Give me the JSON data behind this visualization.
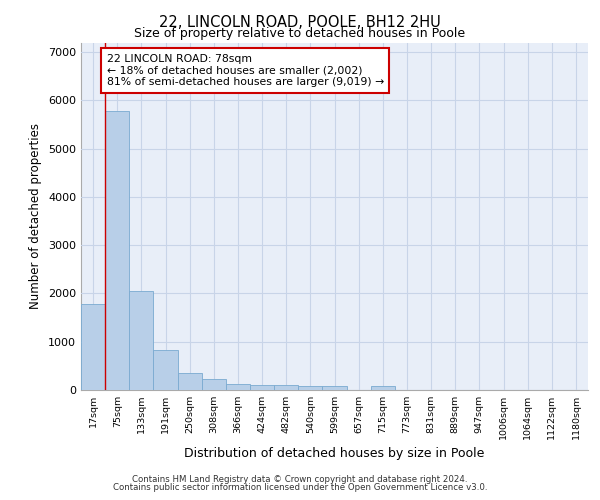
{
  "title_line1": "22, LINCOLN ROAD, POOLE, BH12 2HU",
  "title_line2": "Size of property relative to detached houses in Poole",
  "xlabel": "Distribution of detached houses by size in Poole",
  "ylabel": "Number of detached properties",
  "bar_labels": [
    "17sqm",
    "75sqm",
    "133sqm",
    "191sqm",
    "250sqm",
    "308sqm",
    "366sqm",
    "424sqm",
    "482sqm",
    "540sqm",
    "599sqm",
    "657sqm",
    "715sqm",
    "773sqm",
    "831sqm",
    "889sqm",
    "947sqm",
    "1006sqm",
    "1064sqm",
    "1122sqm",
    "1180sqm"
  ],
  "bar_values": [
    1780,
    5780,
    2060,
    830,
    360,
    230,
    120,
    110,
    100,
    85,
    80,
    0,
    80,
    0,
    0,
    0,
    0,
    0,
    0,
    0,
    0
  ],
  "bar_color": "#b8cfe8",
  "bar_edge_color": "#7aaad0",
  "annotation_text": "22 LINCOLN ROAD: 78sqm\n← 18% of detached houses are smaller (2,002)\n81% of semi-detached houses are larger (9,019) →",
  "annotation_box_color": "#ffffff",
  "annotation_box_edge_color": "#cc0000",
  "vline_color": "#cc0000",
  "ylim": [
    0,
    7200
  ],
  "yticks": [
    0,
    1000,
    2000,
    3000,
    4000,
    5000,
    6000,
    7000
  ],
  "grid_color": "#c8d4e8",
  "plot_bg_color": "#e8eef8",
  "footer_line1": "Contains HM Land Registry data © Crown copyright and database right 2024.",
  "footer_line2": "Contains public sector information licensed under the Open Government Licence v3.0."
}
